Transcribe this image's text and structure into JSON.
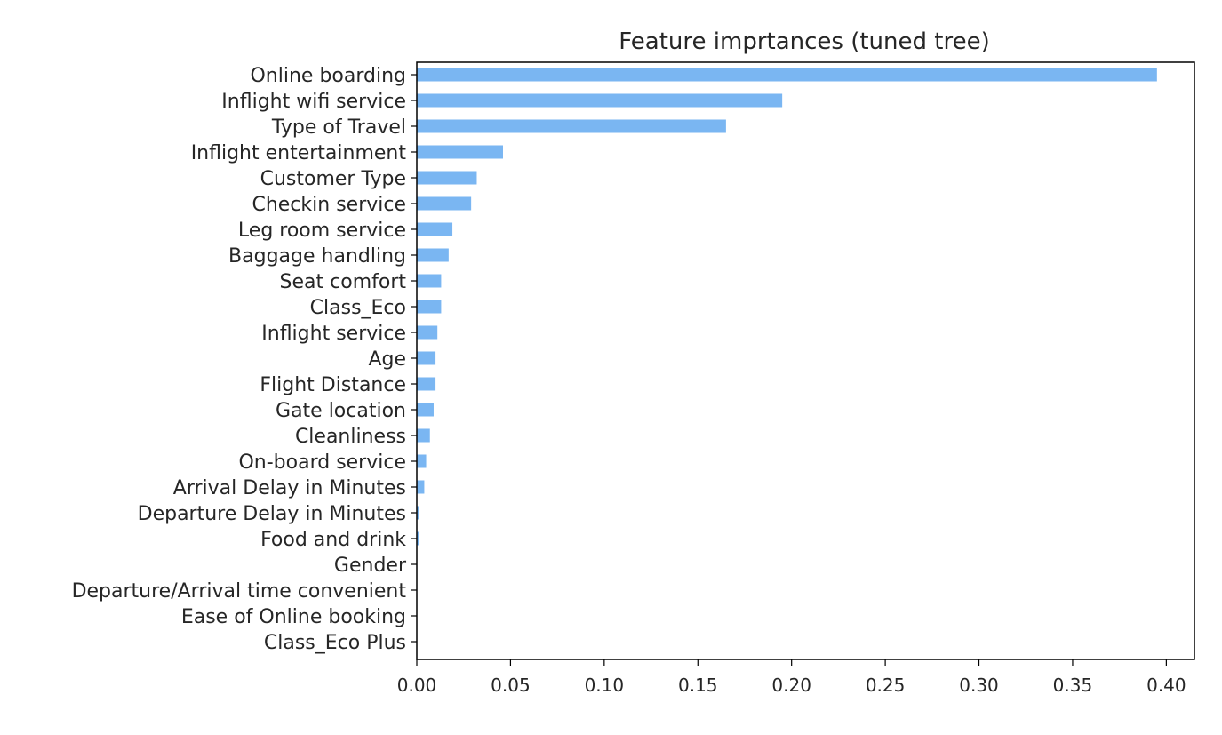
{
  "chart_data": {
    "type": "bar",
    "orientation": "horizontal",
    "title": "Feature imprtances (tuned tree)",
    "xlabel": "",
    "ylabel": "",
    "xlim": [
      0.0,
      0.415
    ],
    "xticks": [
      "0.00",
      "0.05",
      "0.10",
      "0.15",
      "0.20",
      "0.25",
      "0.30",
      "0.35",
      "0.40"
    ],
    "grid": false,
    "bar_color": "#7ab6f2",
    "categories": [
      "Online boarding",
      "Inflight wifi service",
      "Type of Travel",
      "Inflight entertainment",
      "Customer Type",
      "Checkin service",
      "Leg room service",
      "Baggage handling",
      "Seat comfort",
      "Class_Eco",
      "Inflight service",
      "Age",
      "Flight Distance",
      "Gate location",
      "Cleanliness",
      "On-board service",
      "Arrival Delay in Minutes",
      "Departure Delay in Minutes",
      "Food and drink",
      "Gender",
      "Departure/Arrival time convenient",
      "Ease of Online booking",
      "Class_Eco Plus"
    ],
    "values": [
      0.395,
      0.195,
      0.165,
      0.046,
      0.032,
      0.029,
      0.019,
      0.017,
      0.013,
      0.013,
      0.011,
      0.01,
      0.01,
      0.009,
      0.007,
      0.005,
      0.004,
      0.001,
      0.001,
      0.0,
      0.0,
      0.0,
      0.0
    ]
  }
}
